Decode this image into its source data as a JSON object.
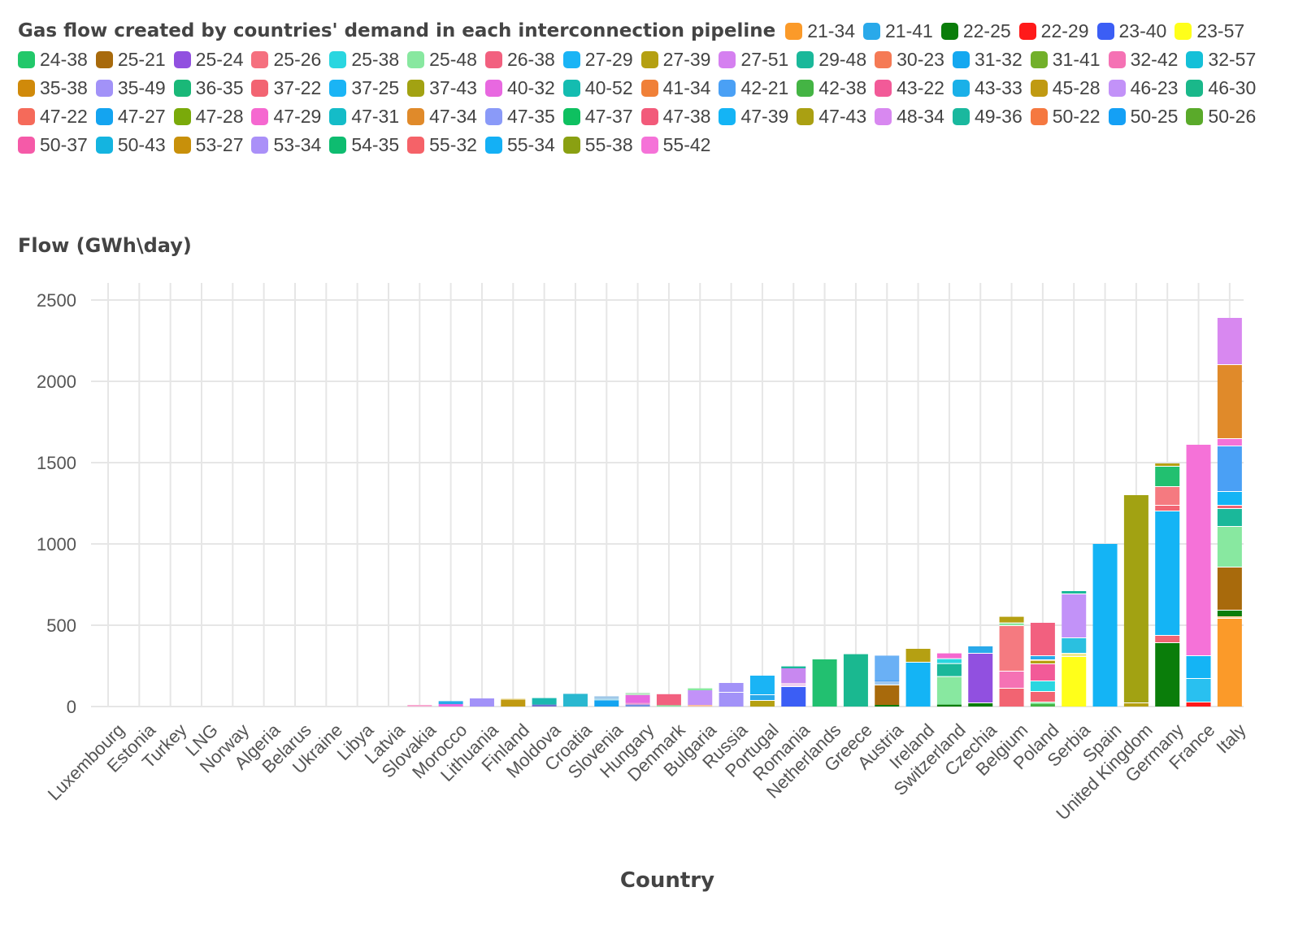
{
  "chart_data": {
    "type": "bar",
    "stacked": true,
    "title": "Gas flow created by countries' demand in each interconnection pipeline",
    "ylabel": "Flow (GWh\\day)",
    "xlabel": "Country",
    "ylim": [
      0,
      2600
    ],
    "yticks": [
      0,
      500,
      1000,
      1500,
      2000,
      2500
    ],
    "grid": true,
    "legend_position": "top",
    "legend": [
      {
        "name": "21-34",
        "color": "#fb9a29"
      },
      {
        "name": "21-41",
        "color": "#29a9ea"
      },
      {
        "name": "22-25",
        "color": "#0a7d0a"
      },
      {
        "name": "22-29",
        "color": "#ff1a1a"
      },
      {
        "name": "23-40",
        "color": "#3b5ef5"
      },
      {
        "name": "23-57",
        "color": "#ffff1a"
      },
      {
        "name": "24-38",
        "color": "#22c86a"
      },
      {
        "name": "25-21",
        "color": "#a86a0c"
      },
      {
        "name": "25-24",
        "color": "#9150e0"
      },
      {
        "name": "25-26",
        "color": "#f5707f"
      },
      {
        "name": "25-38",
        "color": "#2ad6e0"
      },
      {
        "name": "25-48",
        "color": "#88e8a0"
      },
      {
        "name": "26-38",
        "color": "#f2607f"
      },
      {
        "name": "27-29",
        "color": "#1ab4f5"
      },
      {
        "name": "27-39",
        "color": "#b5a012"
      },
      {
        "name": "27-51",
        "color": "#d580f0"
      },
      {
        "name": "29-48",
        "color": "#1ab89a"
      },
      {
        "name": "30-23",
        "color": "#f57a55"
      },
      {
        "name": "31-32",
        "color": "#14a8f0"
      },
      {
        "name": "31-41",
        "color": "#72b02a"
      },
      {
        "name": "32-42",
        "color": "#f572b4"
      },
      {
        "name": "32-57",
        "color": "#14c0d8"
      },
      {
        "name": "35-38",
        "color": "#d08a0a"
      },
      {
        "name": "35-49",
        "color": "#a292f8"
      },
      {
        "name": "36-35",
        "color": "#1ab878"
      },
      {
        "name": "37-22",
        "color": "#f26472"
      },
      {
        "name": "37-25",
        "color": "#1ab4f5"
      },
      {
        "name": "37-43",
        "color": "#a2a212"
      },
      {
        "name": "40-32",
        "color": "#e868e0"
      },
      {
        "name": "40-52",
        "color": "#14bcb0"
      },
      {
        "name": "41-34",
        "color": "#f08038"
      },
      {
        "name": "42-21",
        "color": "#4aa0f5"
      },
      {
        "name": "42-38",
        "color": "#44b444"
      },
      {
        "name": "43-22",
        "color": "#f25a98"
      },
      {
        "name": "43-33",
        "color": "#1ab0e8"
      },
      {
        "name": "45-28",
        "color": "#c09a12"
      },
      {
        "name": "46-23",
        "color": "#c292f8"
      },
      {
        "name": "46-30",
        "color": "#1ab88a"
      },
      {
        "name": "47-22",
        "color": "#f56a5a"
      },
      {
        "name": "47-27",
        "color": "#14a4f0"
      },
      {
        "name": "47-28",
        "color": "#7aaa0a"
      },
      {
        "name": "47-29",
        "color": "#f568d0"
      },
      {
        "name": "47-31",
        "color": "#14bcc8"
      },
      {
        "name": "47-34",
        "color": "#e08a2a"
      },
      {
        "name": "47-35",
        "color": "#8a9af8"
      },
      {
        "name": "47-37",
        "color": "#0ec060"
      },
      {
        "name": "47-38",
        "color": "#f25a7a"
      },
      {
        "name": "47-39",
        "color": "#14b4f5"
      },
      {
        "name": "47-43",
        "color": "#aaa012"
      },
      {
        "name": "48-34",
        "color": "#d888f0"
      },
      {
        "name": "49-36",
        "color": "#1ab89e"
      },
      {
        "name": "50-22",
        "color": "#f57840"
      },
      {
        "name": "50-25",
        "color": "#14a0f5"
      },
      {
        "name": "50-26",
        "color": "#5aaa2a"
      },
      {
        "name": "50-37",
        "color": "#f55aa8"
      },
      {
        "name": "50-43",
        "color": "#14b4e0"
      },
      {
        "name": "53-27",
        "color": "#c8900a"
      },
      {
        "name": "53-34",
        "color": "#aa90f8"
      },
      {
        "name": "54-35",
        "color": "#0ebc70"
      },
      {
        "name": "55-32",
        "color": "#f56268"
      },
      {
        "name": "55-34",
        "color": "#14b0f5"
      },
      {
        "name": "55-38",
        "color": "#8aa012"
      },
      {
        "name": "55-42",
        "color": "#f572d8"
      }
    ],
    "categories": [
      "Luxembourg",
      "Estonia",
      "Turkey",
      "LNG",
      "Norway",
      "Algeria",
      "Belarus",
      "Ukraine",
      "Libya",
      "Latvia",
      "Slovakia",
      "Morocco",
      "Lithuania",
      "Finland",
      "Moldova",
      "Croatia",
      "Slovenia",
      "Hungary",
      "Denmark",
      "Bulgaria",
      "Russia",
      "Portugal",
      "Romania",
      "Netherlands",
      "Greece",
      "Austria",
      "Ireland",
      "Switzerland",
      "Czechia",
      "Belgium",
      "Poland",
      "Serbia",
      "Spain",
      "United Kingdom",
      "Germany",
      "France",
      "Italy"
    ],
    "stacks": [
      [],
      [],
      [],
      [],
      [],
      [],
      [],
      [],
      [],
      [],
      [
        {
          "c": "#f8a8d0",
          "v": 10
        }
      ],
      [
        {
          "c": "#e868e0",
          "v": 15
        },
        {
          "c": "#29a9ea",
          "v": 18
        }
      ],
      [
        {
          "c": "#a292f8",
          "v": 50
        }
      ],
      [
        {
          "c": "#c09a12",
          "v": 42
        },
        {
          "c": "#e8d890",
          "v": 6
        }
      ],
      [
        {
          "c": "#7070d0",
          "v": 12
        },
        {
          "c": "#1ab8b0",
          "v": 40
        }
      ],
      [
        {
          "c": "#2ab8d0",
          "v": 78
        }
      ],
      [
        {
          "c": "#14a4f0",
          "v": 38
        },
        {
          "c": "#b0e0f0",
          "v": 10
        },
        {
          "c": "#a0c8e8",
          "v": 15
        }
      ],
      [
        {
          "c": "#7090e0",
          "v": 12
        },
        {
          "c": "#f0a0d0",
          "v": 10
        },
        {
          "c": "#e868e0",
          "v": 48
        },
        {
          "c": "#c0e8c8",
          "v": 15
        }
      ],
      [
        {
          "c": "#88e8a0",
          "v": 8
        },
        {
          "c": "#f2607f",
          "v": 68
        }
      ],
      [
        {
          "c": "#f8c0a0",
          "v": 10
        },
        {
          "c": "#c292f8",
          "v": 90
        },
        {
          "c": "#88e8a0",
          "v": 12
        }
      ],
      [
        {
          "c": "#a292f8",
          "v": 85
        },
        {
          "c": "#ffffff",
          "v": 5
        },
        {
          "c": "#a292f8",
          "v": 55
        }
      ],
      [
        {
          "c": "#b5a012",
          "v": 35
        },
        {
          "c": "#ffffff",
          "v": 5
        },
        {
          "c": "#29a9ea",
          "v": 30
        },
        {
          "c": "#ffffff",
          "v": 5
        },
        {
          "c": "#1ab4f5",
          "v": 115
        }
      ],
      [
        {
          "c": "#3b5ef5",
          "v": 120
        },
        {
          "c": "#ffffff",
          "v": 5
        },
        {
          "c": "#f0d0f0",
          "v": 20
        },
        {
          "c": "#c888f0",
          "v": 90
        },
        {
          "c": "#1ab89a",
          "v": 12
        }
      ],
      [
        {
          "c": "#22c070",
          "v": 290
        }
      ],
      [
        {
          "c": "#1ab890",
          "v": 322
        }
      ],
      [
        {
          "c": "#0a7d0a",
          "v": 10
        },
        {
          "c": "#a86a0c",
          "v": 120
        },
        {
          "c": "#ffffff",
          "v": 5
        },
        {
          "c": "#a0c8f0",
          "v": 20
        },
        {
          "c": "#4aa0f5",
          "v": 8
        },
        {
          "c": "#6ab0f5",
          "v": 150
        }
      ],
      [
        {
          "c": "#14b4f5",
          "v": 270
        },
        {
          "c": "#ffffff",
          "v": 5
        },
        {
          "c": "#b5a012",
          "v": 80
        }
      ],
      [
        {
          "c": "#0a7d0a",
          "v": 12
        },
        {
          "c": "#88e8a0",
          "v": 170
        },
        {
          "c": "#ffffff",
          "v": 5
        },
        {
          "c": "#1ab89a",
          "v": 75
        },
        {
          "c": "#ffffff",
          "v": 5
        },
        {
          "c": "#2ad6e0",
          "v": 25
        },
        {
          "c": "#ffffff",
          "v": 5
        },
        {
          "c": "#f568d0",
          "v": 30
        }
      ],
      [
        {
          "c": "#0a7d0a",
          "v": 20
        },
        {
          "c": "#ffffff",
          "v": 5
        },
        {
          "c": "#9150e0",
          "v": 300
        },
        {
          "c": "#ffffff",
          "v": 5
        },
        {
          "c": "#29a9ea",
          "v": 40
        }
      ],
      [
        {
          "c": "#f26472",
          "v": 110
        },
        {
          "c": "#ffffff",
          "v": 5
        },
        {
          "c": "#f572b4",
          "v": 100
        },
        {
          "c": "#ffffff",
          "v": 5
        },
        {
          "c": "#f57a80",
          "v": 275
        },
        {
          "c": "#ffffff",
          "v": 5
        },
        {
          "c": "#88e8a0",
          "v": 12
        },
        {
          "c": "#ffffff",
          "v": 5
        },
        {
          "c": "#b5a012",
          "v": 35
        }
      ],
      [
        {
          "c": "#44b444",
          "v": 15
        },
        {
          "c": "#88e8a0",
          "v": 10
        },
        {
          "c": "#ffffff",
          "v": 5
        },
        {
          "c": "#f26472",
          "v": 60
        },
        {
          "c": "#ffffff",
          "v": 5
        },
        {
          "c": "#2ad6e0",
          "v": 60
        },
        {
          "c": "#ffffff",
          "v": 5
        },
        {
          "c": "#f25a98",
          "v": 100
        },
        {
          "c": "#ffffff",
          "v": 5
        },
        {
          "c": "#b5a012",
          "v": 15
        },
        {
          "c": "#f0e0a0",
          "v": 5
        },
        {
          "c": "#ffffff",
          "v": 5
        },
        {
          "c": "#29a9ea",
          "v": 20
        },
        {
          "c": "#ffffff",
          "v": 5
        },
        {
          "c": "#f2607f",
          "v": 200
        }
      ],
      [
        {
          "c": "#ffff1a",
          "v": 305
        },
        {
          "c": "#ffffff",
          "v": 5
        },
        {
          "c": "#f0e890",
          "v": 15
        },
        {
          "c": "#ffffff",
          "v": 5
        },
        {
          "c": "#2ac0e0",
          "v": 90
        },
        {
          "c": "#ffffff",
          "v": 5
        },
        {
          "c": "#c292f8",
          "v": 265
        },
        {
          "c": "#ffffff",
          "v": 5
        },
        {
          "c": "#1ab89a",
          "v": 15
        }
      ],
      [
        {
          "c": "#14b4f5",
          "v": 1000
        }
      ],
      [
        {
          "c": "#b5a012",
          "v": 20
        },
        {
          "c": "#ffffff",
          "v": 5
        },
        {
          "c": "#a2a212",
          "v": 1275
        }
      ],
      [
        {
          "c": "#0a7d0a",
          "v": 390
        },
        {
          "c": "#ffffff",
          "v": 5
        },
        {
          "c": "#f26472",
          "v": 40
        },
        {
          "c": "#ffffff",
          "v": 5
        },
        {
          "c": "#14b4f5",
          "v": 760
        },
        {
          "c": "#ffffff",
          "v": 5
        },
        {
          "c": "#f26472",
          "v": 30
        },
        {
          "c": "#ffffff",
          "v": 5
        },
        {
          "c": "#f57a80",
          "v": 110
        },
        {
          "c": "#ffffff",
          "v": 5
        },
        {
          "c": "#22c070",
          "v": 120
        },
        {
          "c": "#ffffff",
          "v": 5
        },
        {
          "c": "#b5a012",
          "v": 15
        }
      ],
      [
        {
          "c": "#ff1a1a",
          "v": 25
        },
        {
          "c": "#ffffff",
          "v": 5
        },
        {
          "c": "#29c0f0",
          "v": 140
        },
        {
          "c": "#ffffff",
          "v": 5
        },
        {
          "c": "#14b4f5",
          "v": 135
        },
        {
          "c": "#ffffff",
          "v": 5
        },
        {
          "c": "#f572d8",
          "v": 1295
        }
      ],
      [
        {
          "c": "#fb9a29",
          "v": 540
        },
        {
          "c": "#ffffff",
          "v": 5
        },
        {
          "c": "#fbd0a0",
          "v": 10
        },
        {
          "c": "#0a7d0a",
          "v": 35
        },
        {
          "c": "#ffffff",
          "v": 5
        },
        {
          "c": "#a86a0c",
          "v": 260
        },
        {
          "c": "#ffffff",
          "v": 5
        },
        {
          "c": "#88e8a0",
          "v": 245
        },
        {
          "c": "#ffffff",
          "v": 5
        },
        {
          "c": "#1ab89a",
          "v": 105
        },
        {
          "c": "#ffffff",
          "v": 5
        },
        {
          "c": "#f26472",
          "v": 15
        },
        {
          "c": "#ffffff",
          "v": 5
        },
        {
          "c": "#14b4f5",
          "v": 80
        },
        {
          "c": "#ffffff",
          "v": 5
        },
        {
          "c": "#4aa0f5",
          "v": 275
        },
        {
          "c": "#ffffff",
          "v": 5
        },
        {
          "c": "#f572d8",
          "v": 40
        },
        {
          "c": "#ffffff",
          "v": 5
        },
        {
          "c": "#e08a2a",
          "v": 450
        },
        {
          "c": "#ffffff",
          "v": 5
        },
        {
          "c": "#d888f0",
          "v": 285
        }
      ]
    ]
  }
}
